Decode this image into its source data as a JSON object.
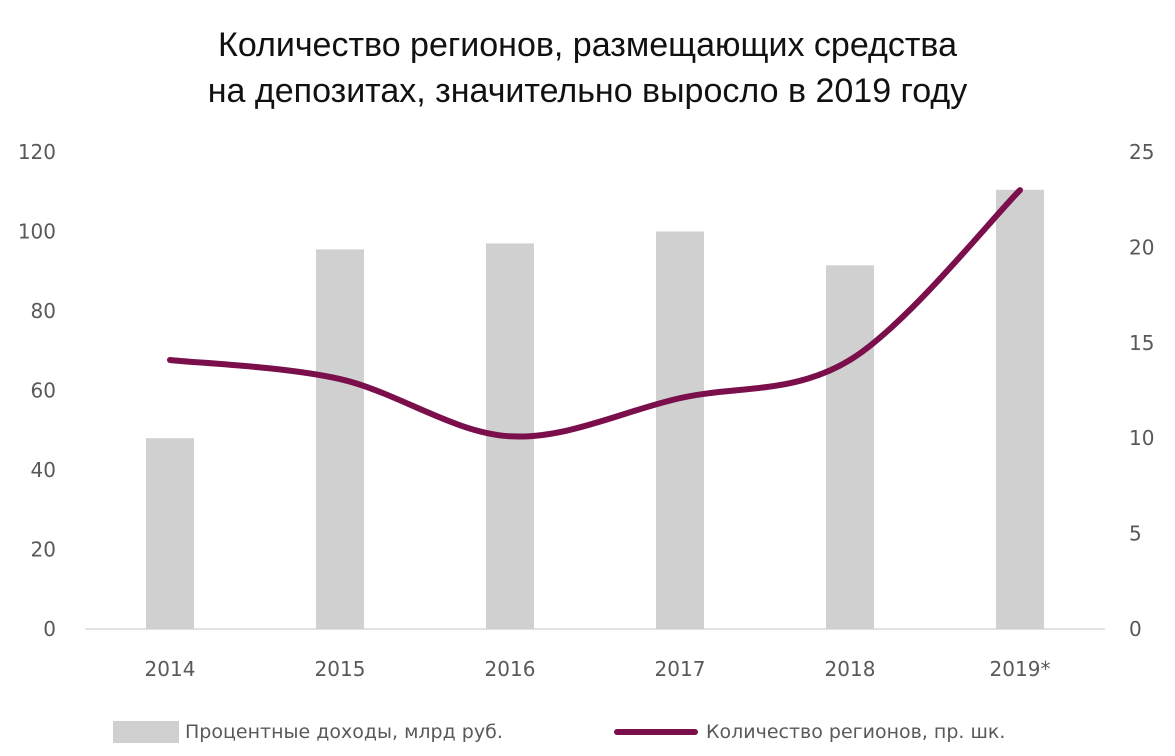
{
  "chart_data": {
    "type": "bar",
    "title_lines": [
      "Количество регионов, размещающих средства",
      "на депозитах, значительно выросло в 2019 году"
    ],
    "categories": [
      "2014",
      "2015",
      "2016",
      "2017",
      "2018",
      "2019*"
    ],
    "series": [
      {
        "name": "Процентные доходы, млрд руб.",
        "type": "bar",
        "axis": "left",
        "color": "#d0d0d0",
        "values": [
          48,
          95.5,
          97,
          100,
          91.5,
          110.5
        ]
      },
      {
        "name": "Количество регионов, пр. шк.",
        "type": "line",
        "axis": "right",
        "color": "#7a0f4c",
        "smooth": true,
        "values": [
          14.1,
          13.1,
          10.1,
          12.1,
          14.1,
          23
        ]
      }
    ],
    "y_left": {
      "min": 0,
      "max": 120,
      "ticks": [
        "0",
        "20",
        "40",
        "60",
        "80",
        "100",
        "120"
      ]
    },
    "y_right": {
      "min": 0,
      "max": 25,
      "ticks": [
        "0",
        "5",
        "10",
        "15",
        "20",
        "25"
      ]
    },
    "grid": false,
    "legend_position": "bottom"
  }
}
